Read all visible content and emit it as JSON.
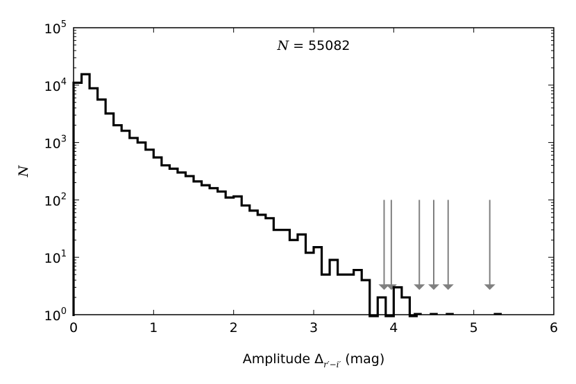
{
  "chart_data": {
    "type": "histogram",
    "x_scale": "linear",
    "y_scale": "log",
    "xlim": [
      0,
      6
    ],
    "ylim": [
      1,
      100000
    ],
    "bin_width": 0.1,
    "x_ticks": [
      0,
      1,
      2,
      3,
      4,
      5,
      6
    ],
    "y_ticks": [
      {
        "value": 1,
        "base": "10",
        "exp": "0"
      },
      {
        "value": 10,
        "base": "10",
        "exp": "1"
      },
      {
        "value": 100,
        "base": "10",
        "exp": "2"
      },
      {
        "value": 1000,
        "base": "10",
        "exp": "3"
      },
      {
        "value": 10000,
        "base": "10",
        "exp": "4"
      },
      {
        "value": 100000,
        "base": "10",
        "exp": "5"
      }
    ],
    "bins_left": [
      0.0,
      0.1,
      0.2,
      0.3,
      0.4,
      0.5,
      0.6,
      0.7,
      0.8,
      0.9,
      1.0,
      1.1,
      1.2,
      1.3,
      1.4,
      1.5,
      1.6,
      1.7,
      1.8,
      1.9,
      2.0,
      2.1,
      2.2,
      2.3,
      2.4,
      2.5,
      2.6,
      2.7,
      2.8,
      2.9,
      3.0,
      3.1,
      3.2,
      3.3,
      3.4,
      3.5,
      3.6,
      3.7,
      3.8,
      3.9,
      4.0,
      4.1,
      4.2
    ],
    "counts": [
      11000,
      15500,
      8800,
      5600,
      3200,
      2000,
      1600,
      1200,
      1000,
      750,
      550,
      400,
      350,
      300,
      260,
      210,
      180,
      160,
      140,
      110,
      115,
      80,
      65,
      55,
      48,
      30,
      30,
      20,
      25,
      12,
      15,
      5,
      9,
      5,
      5,
      6,
      4,
      1,
      2,
      1,
      3,
      2,
      1
    ],
    "annotation": {
      "var": "N",
      "text": "= 55082"
    },
    "ylabel": "N",
    "xlabel_prefix": "Amplitude Δ",
    "xlabel_sub": "r′−i′",
    "xlabel_suffix": " (mag)",
    "arrows_x": [
      3.88,
      3.97,
      4.32,
      4.5,
      4.68,
      5.2
    ],
    "arrow_top_y": 100,
    "arrow_tip_y": 2.7,
    "dash_segments": [
      [
        4.25,
        4.35
      ],
      [
        4.45,
        4.55
      ],
      [
        4.65,
        4.75
      ],
      [
        5.25,
        5.35
      ]
    ],
    "colors": {
      "histogram": "#000000",
      "arrows": "#808080"
    }
  }
}
